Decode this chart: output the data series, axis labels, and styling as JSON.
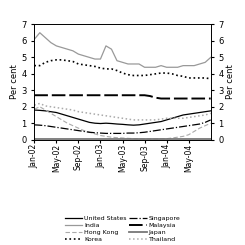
{
  "title": "",
  "ylabel_left": "Per cent",
  "ylabel_right": "Per cent",
  "ylim": [
    0,
    7
  ],
  "yticks": [
    0,
    1,
    2,
    3,
    4,
    5,
    6,
    7
  ],
  "x_labels": [
    "Jan-02",
    "May-02",
    "Sep-02",
    "Jan-03",
    "May-03",
    "Sep-03",
    "Jan-04",
    "May-04"
  ],
  "tick_positions": [
    0,
    4,
    8,
    12,
    16,
    20,
    24,
    28
  ],
  "n_points": 33,
  "series": {
    "United States": {
      "color": "#000000",
      "linestyle": "-",
      "linewidth": 0.9,
      "values": [
        1.8,
        1.78,
        1.75,
        1.7,
        1.65,
        1.55,
        1.45,
        1.35,
        1.25,
        1.15,
        1.05,
        1.0,
        0.98,
        1.0,
        0.98,
        0.95,
        0.93,
        0.9,
        0.88,
        0.9,
        0.95,
        1.0,
        1.05,
        1.1,
        1.2,
        1.3,
        1.4,
        1.5,
        1.55,
        1.6,
        1.65,
        1.7,
        1.75
      ]
    },
    "India": {
      "color": "#999999",
      "linestyle": "-",
      "linewidth": 0.9,
      "values": [
        6.1,
        6.5,
        6.2,
        5.9,
        5.7,
        5.6,
        5.5,
        5.4,
        5.2,
        5.1,
        5.0,
        4.9,
        4.9,
        5.7,
        5.5,
        4.8,
        4.7,
        4.6,
        4.6,
        4.6,
        4.4,
        4.4,
        4.4,
        4.5,
        4.4,
        4.4,
        4.4,
        4.5,
        4.5,
        4.5,
        4.6,
        4.7,
        5.0
      ]
    },
    "Hong Kong": {
      "color": "#aaaaaa",
      "linestyle": "--",
      "linewidth": 0.8,
      "dashes": [
        4,
        2
      ],
      "values": [
        1.85,
        2.0,
        1.8,
        1.6,
        1.4,
        1.2,
        1.0,
        0.85,
        0.7,
        0.55,
        0.45,
        0.35,
        0.25,
        0.2,
        0.15,
        0.12,
        0.1,
        0.08,
        0.06,
        0.05,
        0.04,
        0.04,
        0.04,
        0.05,
        0.06,
        0.1,
        0.15,
        0.2,
        0.3,
        0.5,
        0.7,
        0.85,
        1.0
      ]
    },
    "Korea": {
      "color": "#000000",
      "linestyle": ":",
      "linewidth": 1.2,
      "values": [
        4.5,
        4.5,
        4.7,
        4.8,
        4.85,
        4.85,
        4.8,
        4.75,
        4.6,
        4.55,
        4.5,
        4.45,
        4.35,
        4.3,
        4.3,
        4.2,
        4.05,
        3.95,
        3.9,
        3.9,
        3.9,
        3.95,
        4.0,
        4.05,
        4.05,
        4.0,
        3.9,
        3.85,
        3.75,
        3.75,
        3.75,
        3.75,
        3.7
      ]
    },
    "Singapore": {
      "color": "#000000",
      "linestyle": "-.",
      "linewidth": 0.9,
      "values": [
        0.9,
        0.88,
        0.85,
        0.8,
        0.75,
        0.7,
        0.65,
        0.6,
        0.55,
        0.5,
        0.45,
        0.42,
        0.4,
        0.38,
        0.38,
        0.38,
        0.38,
        0.4,
        0.4,
        0.42,
        0.45,
        0.5,
        0.55,
        0.6,
        0.65,
        0.7,
        0.75,
        0.8,
        0.85,
        0.9,
        0.95,
        1.05,
        1.2
      ]
    },
    "Malaysia": {
      "color": "#000000",
      "linestyle": "--",
      "linewidth": 1.4,
      "dashes": [
        7,
        2
      ],
      "values": [
        2.7,
        2.7,
        2.7,
        2.7,
        2.7,
        2.7,
        2.7,
        2.7,
        2.7,
        2.7,
        2.7,
        2.7,
        2.7,
        2.7,
        2.7,
        2.7,
        2.7,
        2.7,
        2.7,
        2.7,
        2.7,
        2.65,
        2.55,
        2.5,
        2.5,
        2.5,
        2.5,
        2.5,
        2.5,
        2.5,
        2.5,
        2.5,
        2.5
      ]
    },
    "Japan": {
      "color": "#777777",
      "linestyle": "-",
      "linewidth": 1.3,
      "values": [
        0.02,
        0.02,
        0.02,
        0.02,
        0.02,
        0.02,
        0.02,
        0.02,
        0.02,
        0.02,
        0.02,
        0.02,
        0.02,
        0.02,
        0.02,
        0.02,
        0.02,
        0.02,
        0.02,
        0.02,
        0.02,
        0.02,
        0.02,
        0.02,
        0.02,
        0.02,
        0.02,
        0.02,
        0.02,
        0.02,
        0.02,
        0.02,
        0.02
      ]
    },
    "Thailand": {
      "color": "#aaaaaa",
      "linestyle": ":",
      "linewidth": 1.1,
      "values": [
        2.1,
        2.2,
        2.05,
        2.0,
        1.95,
        1.9,
        1.85,
        1.8,
        1.7,
        1.65,
        1.6,
        1.55,
        1.5,
        1.45,
        1.4,
        1.35,
        1.3,
        1.25,
        1.2,
        1.2,
        1.2,
        1.2,
        1.2,
        1.25,
        1.3,
        1.3,
        1.3,
        1.3,
        1.35,
        1.4,
        1.45,
        1.5,
        1.6
      ]
    }
  },
  "legend": [
    {
      "label": "United States",
      "color": "#000000",
      "linestyle": "-",
      "linewidth": 0.9
    },
    {
      "label": "India",
      "color": "#999999",
      "linestyle": "-",
      "linewidth": 0.9
    },
    {
      "label": "Hong Kong",
      "color": "#aaaaaa",
      "linestyle": "--",
      "linewidth": 0.8,
      "dashes": [
        4,
        2
      ]
    },
    {
      "label": "Korea",
      "color": "#000000",
      "linestyle": ":",
      "linewidth": 1.2
    },
    {
      "label": "Singapore",
      "color": "#000000",
      "linestyle": "-.",
      "linewidth": 0.9
    },
    {
      "label": "Malaysia",
      "color": "#000000",
      "linestyle": "--",
      "linewidth": 1.4,
      "dashes": [
        7,
        2
      ]
    },
    {
      "label": "Japan",
      "color": "#777777",
      "linestyle": "-",
      "linewidth": 1.3
    },
    {
      "label": "Thailand",
      "color": "#aaaaaa",
      "linestyle": ":",
      "linewidth": 1.1
    }
  ]
}
